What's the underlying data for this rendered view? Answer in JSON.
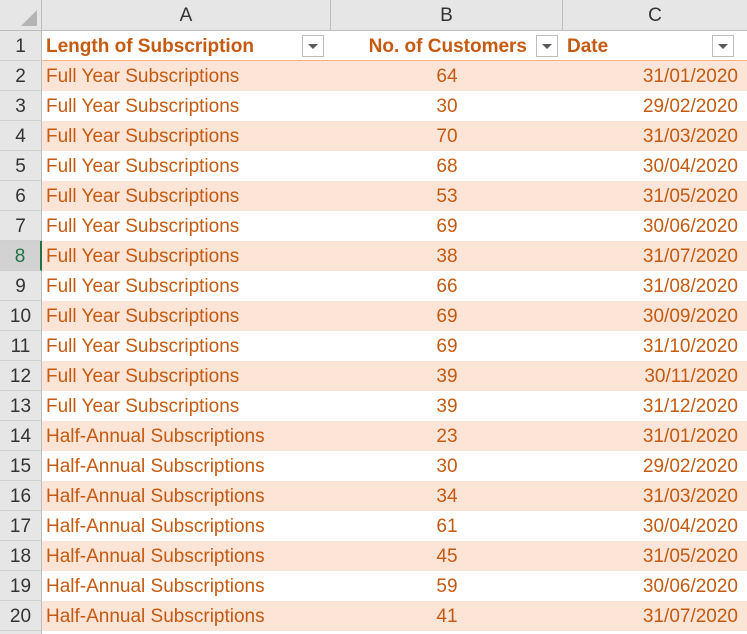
{
  "columns": [
    {
      "letter": "A"
    },
    {
      "letter": "B"
    },
    {
      "letter": "C"
    }
  ],
  "header": {
    "row_number": "1",
    "length_label": "Length of Subscription",
    "customers_label": "No. of Customers",
    "date_label": "Date"
  },
  "active_row": "8",
  "rows": [
    {
      "n": "2",
      "length": "Full Year Subscriptions",
      "customers": "64",
      "date": "31/01/2020"
    },
    {
      "n": "3",
      "length": "Full Year Subscriptions",
      "customers": "30",
      "date": "29/02/2020"
    },
    {
      "n": "4",
      "length": "Full Year Subscriptions",
      "customers": "70",
      "date": "31/03/2020"
    },
    {
      "n": "5",
      "length": "Full Year Subscriptions",
      "customers": "68",
      "date": "30/04/2020"
    },
    {
      "n": "6",
      "length": "Full Year Subscriptions",
      "customers": "53",
      "date": "31/05/2020"
    },
    {
      "n": "7",
      "length": "Full Year Subscriptions",
      "customers": "69",
      "date": "30/06/2020"
    },
    {
      "n": "8",
      "length": "Full Year Subscriptions",
      "customers": "38",
      "date": "31/07/2020"
    },
    {
      "n": "9",
      "length": "Full Year Subscriptions",
      "customers": "66",
      "date": "31/08/2020"
    },
    {
      "n": "10",
      "length": "Full Year Subscriptions",
      "customers": "69",
      "date": "30/09/2020"
    },
    {
      "n": "11",
      "length": "Full Year Subscriptions",
      "customers": "69",
      "date": "31/10/2020"
    },
    {
      "n": "12",
      "length": "Full Year Subscriptions",
      "customers": "39",
      "date": "30/11/2020"
    },
    {
      "n": "13",
      "length": "Full Year Subscriptions",
      "customers": "39",
      "date": "31/12/2020"
    },
    {
      "n": "14",
      "length": "Half-Annual Subscriptions",
      "customers": "23",
      "date": "31/01/2020"
    },
    {
      "n": "15",
      "length": "Half-Annual Subscriptions",
      "customers": "30",
      "date": "29/02/2020"
    },
    {
      "n": "16",
      "length": "Half-Annual Subscriptions",
      "customers": "34",
      "date": "31/03/2020"
    },
    {
      "n": "17",
      "length": "Half-Annual Subscriptions",
      "customers": "61",
      "date": "30/04/2020"
    },
    {
      "n": "18",
      "length": "Half-Annual Subscriptions",
      "customers": "45",
      "date": "31/05/2020"
    },
    {
      "n": "19",
      "length": "Half-Annual Subscriptions",
      "customers": "59",
      "date": "30/06/2020"
    },
    {
      "n": "20",
      "length": "Half-Annual Subscriptions",
      "customers": "41",
      "date": "31/07/2020"
    }
  ],
  "colors": {
    "text_accent": "#c55a11",
    "band_fill": "#fce4d6",
    "header_strip": "#e6e6e6",
    "active_row_marker": "#217346"
  },
  "icons": {
    "filter": "chevron-down-icon",
    "select_all": "select-all-icon"
  }
}
